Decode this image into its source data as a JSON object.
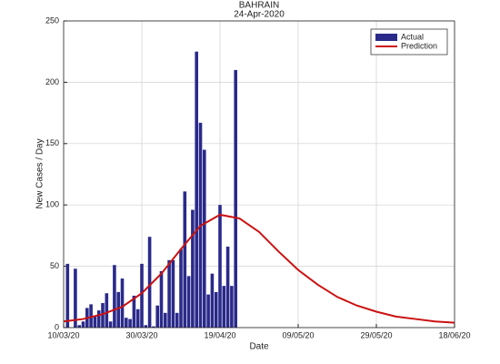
{
  "chart_data": {
    "type": "bar_line",
    "title": "BAHRAIN",
    "subtitle": "24-Apr-2020",
    "xlabel": "Date",
    "ylabel": "New Cases / Day",
    "xlim": [
      "10/03/20",
      "18/06/20"
    ],
    "xticks": [
      "10/03/20",
      "30/03/20",
      "19/04/20",
      "09/05/20",
      "29/05/20",
      "18/06/20"
    ],
    "ylim": [
      0,
      250
    ],
    "yticks": [
      0,
      50,
      100,
      150,
      200,
      250
    ],
    "grid": true,
    "legend": "upper right",
    "series": [
      {
        "name": "Actual",
        "type": "bar",
        "color": "#2a2a8a",
        "x": [
          "11/03/20",
          "12/03/20",
          "13/03/20",
          "14/03/20",
          "15/03/20",
          "16/03/20",
          "17/03/20",
          "18/03/20",
          "19/03/20",
          "20/03/20",
          "21/03/20",
          "22/03/20",
          "23/03/20",
          "24/03/20",
          "25/03/20",
          "26/03/20",
          "27/03/20",
          "28/03/20",
          "29/03/20",
          "30/03/20",
          "31/03/20",
          "01/04/20",
          "02/04/20",
          "03/04/20",
          "04/04/20",
          "05/04/20",
          "06/04/20",
          "07/04/20",
          "08/04/20",
          "09/04/20",
          "10/04/20",
          "11/04/20",
          "12/04/20",
          "13/04/20",
          "14/04/20",
          "15/04/20",
          "16/04/20",
          "17/04/20",
          "18/04/20",
          "19/04/20",
          "20/04/20",
          "21/04/20",
          "22/04/20",
          "23/04/20"
        ],
        "values": [
          52,
          0,
          48,
          2,
          5,
          16,
          19,
          10,
          14,
          20,
          28,
          5,
          51,
          29,
          40,
          8,
          7,
          26,
          15,
          52,
          2,
          74,
          1,
          18,
          46,
          12,
          55,
          55,
          12,
          64,
          111,
          42,
          96,
          225,
          167,
          145,
          27,
          44,
          29,
          100,
          34,
          66,
          34,
          210
        ]
      },
      {
        "name": "Prediction",
        "type": "line",
        "color": "#cc1111",
        "x": [
          "10/03/20",
          "15/03/20",
          "20/03/20",
          "25/03/20",
          "30/03/20",
          "04/04/20",
          "09/04/20",
          "14/04/20",
          "19/04/20",
          "24/04/20",
          "29/04/20",
          "04/05/20",
          "09/05/20",
          "14/05/20",
          "19/05/20",
          "24/05/20",
          "29/05/20",
          "03/06/20",
          "08/06/20",
          "13/06/20",
          "18/06/20"
        ],
        "values": [
          5,
          7,
          11,
          17,
          28,
          44,
          64,
          83,
          92,
          89,
          78,
          62,
          47,
          35,
          25,
          18,
          13,
          9,
          7,
          5,
          4
        ]
      }
    ]
  }
}
